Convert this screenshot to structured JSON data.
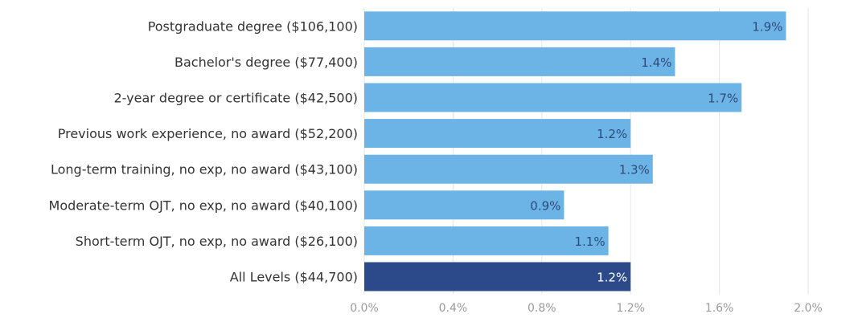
{
  "chart_data": {
    "type": "bar",
    "orientation": "horizontal",
    "categories": [
      "Postgraduate degree ($106,100)",
      "Bachelor's degree ($77,400)",
      "2-year degree or certificate ($42,500)",
      "Previous work experience, no award ($52,200)",
      "Long-term training, no exp, no award ($43,100)",
      "Moderate-term OJT, no exp, no award ($40,100)",
      "Short-term OJT, no exp, no award ($26,100)",
      "All Levels ($44,700)"
    ],
    "values": [
      1.9,
      1.4,
      1.7,
      1.2,
      1.3,
      0.9,
      1.1,
      1.2
    ],
    "value_labels": [
      "1.9%",
      "1.4%",
      "1.7%",
      "1.2%",
      "1.3%",
      "0.9%",
      "1.1%",
      "1.2%"
    ],
    "xlim": [
      0,
      2.0
    ],
    "x_ticks": [
      0,
      0.4,
      0.8,
      1.2,
      1.6,
      2.0
    ],
    "x_tick_labels": [
      "0.0%",
      "0.4%",
      "0.8%",
      "1.2%",
      "1.6%",
      "2.0%"
    ],
    "highlight_index": 7,
    "grid": true,
    "colors": {
      "bar": "#6cb4e6",
      "bar_highlight": "#2c4a8a"
    },
    "title": "",
    "xlabel": "",
    "ylabel": ""
  }
}
